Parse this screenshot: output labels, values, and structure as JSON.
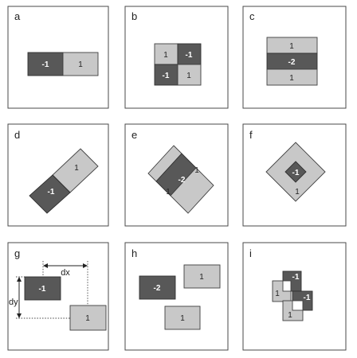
{
  "panels": [
    {
      "label": "a",
      "weights": [
        "-1",
        "1"
      ]
    },
    {
      "label": "b",
      "weights": [
        "1",
        "-1",
        "-1",
        "1"
      ]
    },
    {
      "label": "c",
      "weights": [
        "1",
        "-2",
        "1"
      ]
    },
    {
      "label": "d",
      "weights": [
        "1",
        "-1"
      ]
    },
    {
      "label": "e",
      "weights": [
        "1",
        "-2",
        "1"
      ]
    },
    {
      "label": "f",
      "weights": [
        "-1",
        "1"
      ]
    },
    {
      "label": "g",
      "weights": [
        "-1",
        "1"
      ],
      "dx": "dx",
      "dy": "dy"
    },
    {
      "label": "h",
      "weights": [
        "-2",
        "1",
        "1"
      ]
    },
    {
      "label": "i",
      "weights": [
        "-1",
        "1",
        "-1",
        "1"
      ]
    }
  ]
}
